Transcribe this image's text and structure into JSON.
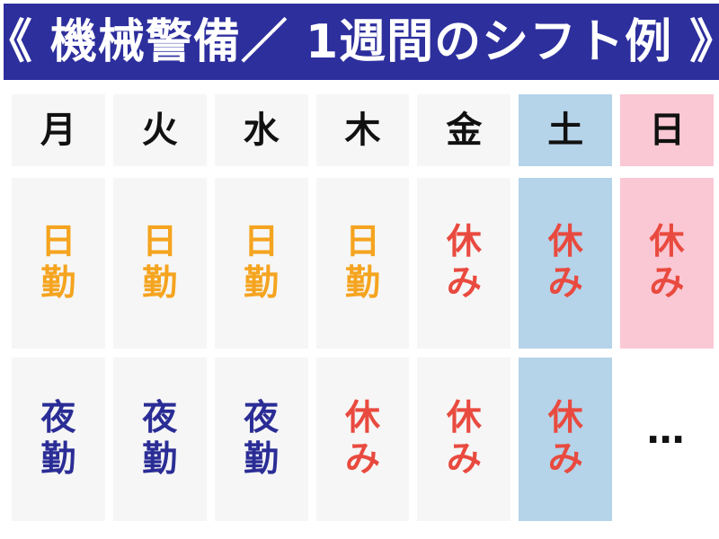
{
  "title": "《 機械警備／ 1週間のシフト例 》",
  "colors": {
    "page_bg": "#FFFFFF",
    "header_bg": "#2D2F9D",
    "title_text": "#FFFFFF",
    "cell_bg": "#F6F6F6",
    "saturday_bg": "#B5D3E9",
    "sunday_bg": "#FAC8D4",
    "day_label": "#111111",
    "day_shift": "#F5A41F",
    "night_shift": "#2B2D96",
    "day_off": "#E94A3F",
    "ellipsis": "#111111"
  },
  "table": {
    "header": [
      {
        "label": "月",
        "highlight": "none"
      },
      {
        "label": "火",
        "highlight": "none"
      },
      {
        "label": "水",
        "highlight": "none"
      },
      {
        "label": "木",
        "highlight": "none"
      },
      {
        "label": "金",
        "highlight": "none"
      },
      {
        "label": "土",
        "highlight": "saturday"
      },
      {
        "label": "日",
        "highlight": "sunday"
      }
    ],
    "rows": [
      {
        "cells": [
          {
            "text": "日\n勤",
            "type": "day-shift"
          },
          {
            "text": "日\n勤",
            "type": "day-shift"
          },
          {
            "text": "日\n勤",
            "type": "day-shift"
          },
          {
            "text": "日\n勤",
            "type": "day-shift"
          },
          {
            "text": "休\nみ",
            "type": "day-off"
          },
          {
            "text": "休\nみ",
            "type": "day-off"
          },
          {
            "text": "休\nみ",
            "type": "day-off"
          }
        ]
      },
      {
        "cells": [
          {
            "text": "夜\n勤",
            "type": "night-shift"
          },
          {
            "text": "夜\n勤",
            "type": "night-shift"
          },
          {
            "text": "夜\n勤",
            "type": "night-shift"
          },
          {
            "text": "休\nみ",
            "type": "day-off"
          },
          {
            "text": "休\nみ",
            "type": "day-off"
          },
          {
            "text": "休\nみ",
            "type": "day-off"
          },
          {
            "text": "…",
            "type": "more"
          }
        ]
      }
    ]
  }
}
